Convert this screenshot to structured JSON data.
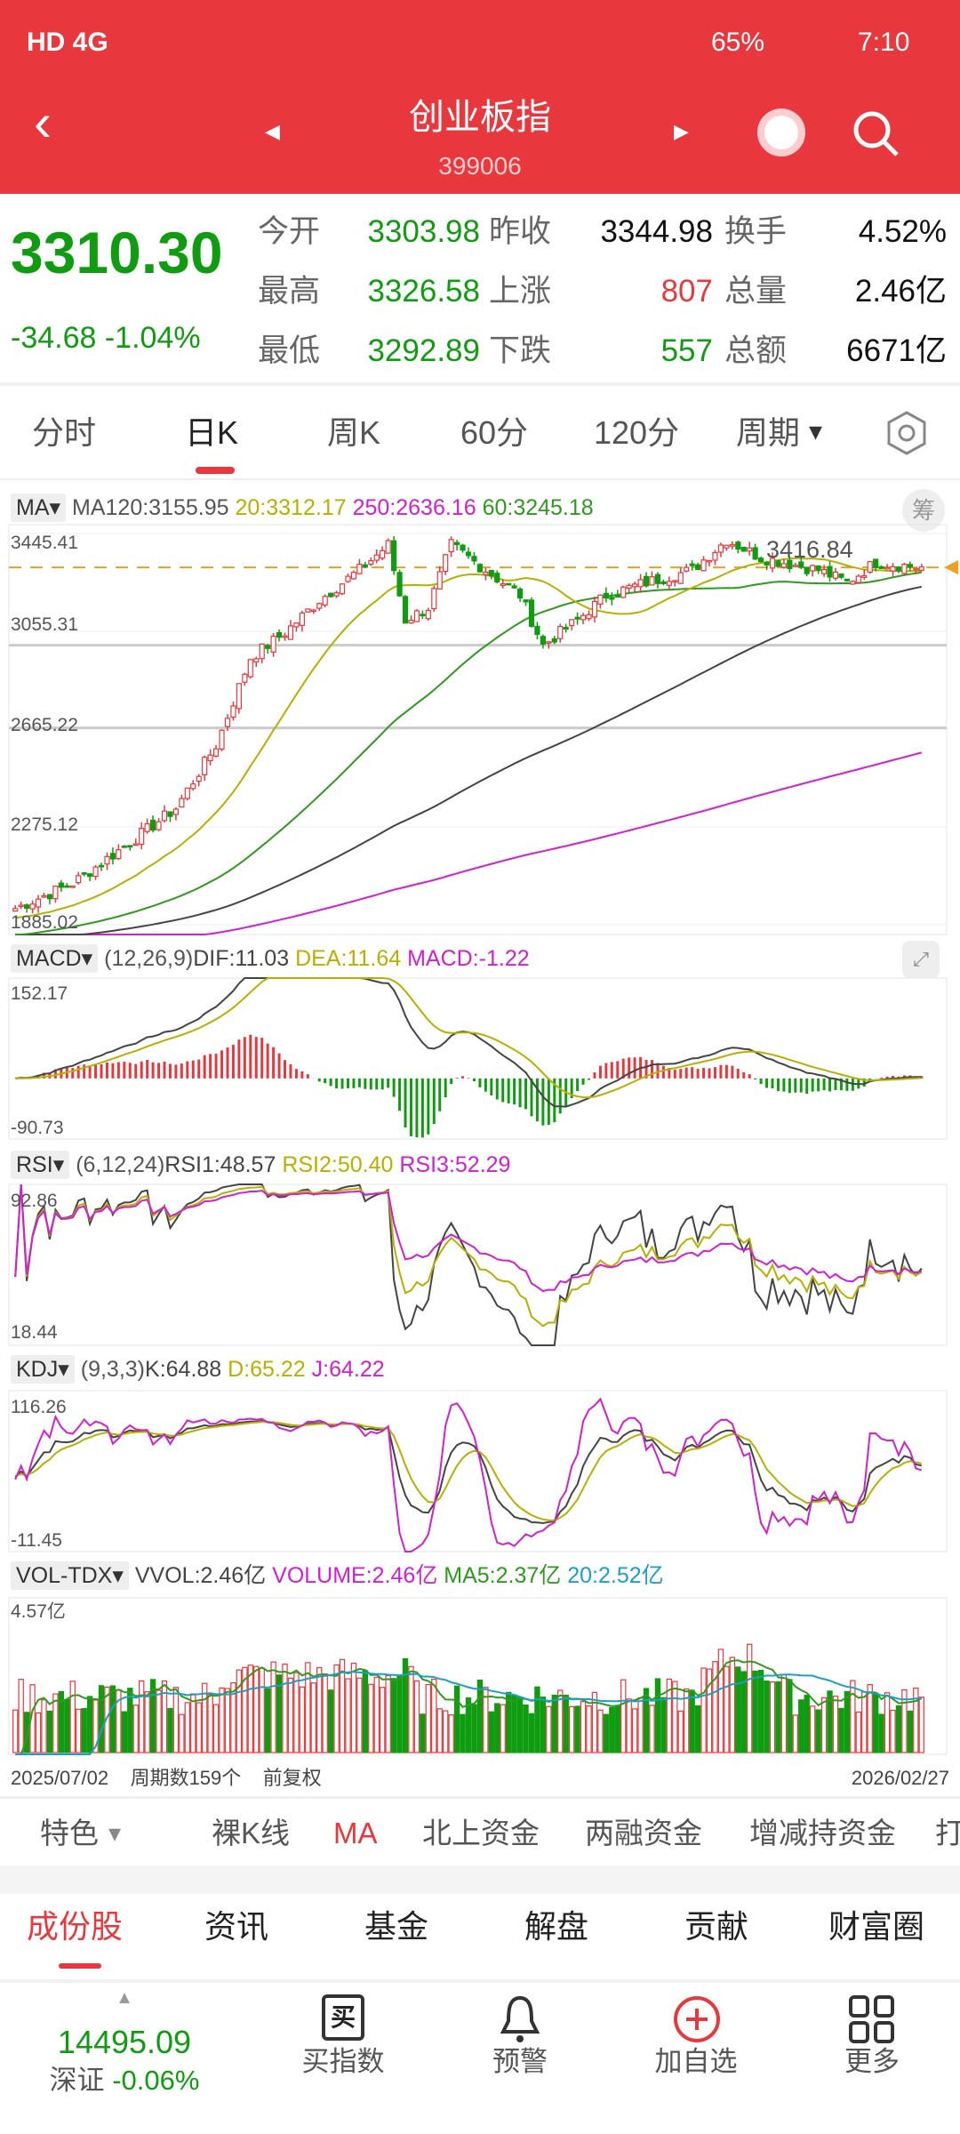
{
  "status": {
    "left": "HD 4G",
    "battery": "65%",
    "time": "7:10"
  },
  "header": {
    "title": "创业板指",
    "code": "399006",
    "back_icon": "chevron-left",
    "search_icon": "search"
  },
  "quote": {
    "price": "3310.30",
    "change": "-34.68",
    "change_pct": "-1.04%",
    "fields": [
      {
        "label": "今开",
        "value": "3303.98",
        "color": "#109c10"
      },
      {
        "label": "昨收",
        "value": "3344.98",
        "color": "#111111"
      },
      {
        "label": "换手",
        "value": "4.52%",
        "color": "#111111"
      },
      {
        "label": "最高",
        "value": "3326.58",
        "color": "#109c10"
      },
      {
        "label": "上涨",
        "value": "807",
        "color": "#e8383d"
      },
      {
        "label": "总量",
        "value": "2.46亿",
        "color": "#111111"
      },
      {
        "label": "最低",
        "value": "3292.89",
        "color": "#109c10"
      },
      {
        "label": "下跌",
        "value": "557",
        "color": "#109c10"
      },
      {
        "label": "总额",
        "value": "6671亿",
        "color": "#111111"
      }
    ]
  },
  "period_tabs": [
    "分时",
    "日K",
    "周K",
    "60分",
    "120分",
    "周期"
  ],
  "active_period": "日K",
  "ma": {
    "btn": "MA",
    "ma120": "MA120:3155.95",
    "ma20": "20:3312.17",
    "ma250": "250:2636.16",
    "ma60": "60:3245.18",
    "chip": "筹",
    "axis": [
      "3445.41",
      "3055.31",
      "2665.22",
      "2275.12",
      "1885.02"
    ],
    "high_mark": "3416.84"
  },
  "macd": {
    "btn": "MACD",
    "params": "(12,26,9)",
    "dif": "DIF:11.03",
    "dea": "DEA:11.64",
    "macd": "MACD:-1.22",
    "axis": [
      "152.17",
      "-90.73"
    ]
  },
  "rsi": {
    "btn": "RSI",
    "params": "(6,12,24)",
    "rsi1": "RSI1:48.57",
    "rsi2": "RSI2:50.40",
    "rsi3": "RSI3:52.29",
    "axis": [
      "92.86",
      "18.44"
    ]
  },
  "kdj": {
    "btn": "KDJ",
    "params": "(9,3,3)",
    "k": "K:64.88",
    "d": "D:65.22",
    "j": "J:64.22",
    "axis": [
      "116.26",
      "-11.45"
    ]
  },
  "vol": {
    "btn": "VOL-TDX",
    "vvol": "VVOL:2.46亿",
    "volume": "VOLUME:2.46亿",
    "ma5": "MA5:2.37亿",
    "ma20": "20:2.52亿",
    "axis": "4.57亿"
  },
  "footer": {
    "start": "2025/07/02",
    "count": "周期数159个",
    "adjust": "前复权",
    "end": "2026/02/27"
  },
  "feature_tabs": [
    "特色",
    "裸K线",
    "MA",
    "北上资金",
    "两融资金",
    "增减持资金",
    "打"
  ],
  "bottom_tabs": [
    "成份股",
    "资讯",
    "基金",
    "解盘",
    "贡献",
    "财富圈"
  ],
  "nav": {
    "index_value": "14495.09",
    "index_name": "深证",
    "index_change": "-0.06%",
    "items": [
      "买指数",
      "预警",
      "加自选",
      "更多"
    ]
  },
  "colors": {
    "up": "#e8383d",
    "down": "#109c10",
    "ma20": "#b8b000",
    "ma60": "#2e9a1e",
    "ma120": "#444444",
    "ma250": "#d020d0",
    "brand": "#e8383d"
  },
  "chart_data": {
    "type": "candlestick",
    "count": 159,
    "ylim": [
      1885.02,
      3445.41
    ],
    "close_keypoints": [
      [
        0,
        1950
      ],
      [
        10,
        2050
      ],
      [
        21,
        2230
      ],
      [
        28,
        2350
      ],
      [
        35,
        2600
      ],
      [
        41,
        2950
      ],
      [
        47,
        3050
      ],
      [
        53,
        3180
      ],
      [
        60,
        3300
      ],
      [
        65,
        3400
      ],
      [
        68,
        3100
      ],
      [
        72,
        3150
      ],
      [
        76,
        3400
      ],
      [
        82,
        3300
      ],
      [
        88,
        3200
      ],
      [
        92,
        3000
      ],
      [
        98,
        3100
      ],
      [
        103,
        3200
      ],
      [
        110,
        3250
      ],
      [
        118,
        3300
      ],
      [
        124,
        3420
      ],
      [
        130,
        3350
      ],
      [
        140,
        3300
      ],
      [
        145,
        3250
      ],
      [
        150,
        3330
      ],
      [
        158,
        3310
      ]
    ]
  }
}
